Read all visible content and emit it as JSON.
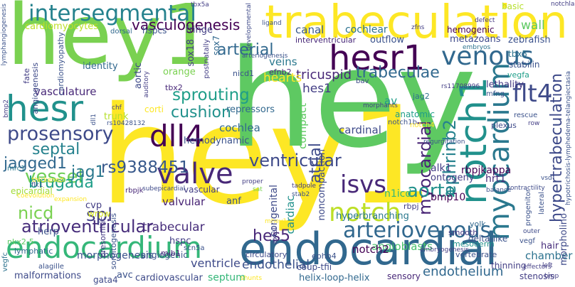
{
  "cloud": {
    "words": [
      {
        "text": "hey1",
        "color": "#fde725"
      },
      {
        "text": "hey",
        "color": "#5ec962"
      },
      {
        "text": "hey1",
        "color": "#7ad151"
      },
      {
        "text": "trabeculation",
        "color": "#fde725"
      },
      {
        "text": "endocardial",
        "color": "#31688e"
      },
      {
        "text": "notch1",
        "color": "#21918c"
      },
      {
        "text": "hesr1",
        "color": "#440154"
      },
      {
        "text": "hesr",
        "color": "#21918c"
      },
      {
        "text": "myocardium",
        "color": "#2a788e"
      },
      {
        "text": "endocardium",
        "color": "#35b779"
      },
      {
        "text": "valve",
        "color": "#482878"
      },
      {
        "text": "dll4",
        "color": "#440154"
      },
      {
        "text": "venous",
        "color": "#31688e"
      },
      {
        "text": "intersegmental",
        "color": "#26828e"
      },
      {
        "text": "notch",
        "color": "#bddf26"
      },
      {
        "text": "arteriovenous",
        "color": "#31688e"
      },
      {
        "text": "flt4",
        "color": "#3e4a89"
      },
      {
        "text": "prosensory",
        "color": "#3e4a89"
      },
      {
        "text": "isvs",
        "color": "#482878"
      },
      {
        "text": "ventricular",
        "color": "#3e4a89"
      },
      {
        "text": "sprouting",
        "color": "#1f9e89"
      },
      {
        "text": "trabeculae",
        "color": "#31688e"
      },
      {
        "text": "atrioventricular",
        "color": "#472d7b"
      },
      {
        "text": "vessel",
        "color": "#6ece58"
      },
      {
        "text": "hypertrabeculation",
        "color": "#3e4a89"
      },
      {
        "text": "myocardial",
        "color": "#482475"
      },
      {
        "text": "aorta",
        "color": "#21918c"
      },
      {
        "text": "cushion",
        "color": "#21918c"
      },
      {
        "text": "jagged1",
        "color": "#31688e"
      },
      {
        "text": "brugada",
        "color": "#1f9e89"
      },
      {
        "text": "rs9388451",
        "color": "#38598c"
      },
      {
        "text": "arterial",
        "color": "#31688e"
      },
      {
        "text": "vasculogenesis",
        "color": "#440154"
      },
      {
        "text": "ephrinb2",
        "color": "#26828e"
      },
      {
        "text": "jag1",
        "color": "#2a788e"
      },
      {
        "text": "nicd",
        "color": "#7ad151"
      },
      {
        "text": "hes5",
        "color": "#482878"
      },
      {
        "text": "spl",
        "color": "#433e85"
      },
      {
        "text": "cardiomyocytes",
        "color": "#bddf26"
      },
      {
        "text": "septal",
        "color": "#26828e"
      },
      {
        "text": "angioblasts",
        "color": "#4ac16d"
      },
      {
        "text": "atrial",
        "color": "#3e4a89"
      },
      {
        "text": "tricuspid",
        "color": "#482878"
      },
      {
        "text": "vasculature",
        "color": "#482878"
      },
      {
        "text": "canal",
        "color": "#38598c"
      },
      {
        "text": "cochlear",
        "color": "#2c728e"
      },
      {
        "text": "hemogenic",
        "color": "#440154"
      },
      {
        "text": "basic",
        "color": "#b5de2b"
      },
      {
        "text": "wall",
        "color": "#5ec962"
      },
      {
        "text": "endothelium",
        "color": "#31688e"
      },
      {
        "text": "endothelial",
        "color": "#3b528b"
      },
      {
        "text": "ventricle",
        "color": "#3e4a89"
      },
      {
        "text": "chamber",
        "color": "#2c728e"
      },
      {
        "text": "hyperbranching",
        "color": "#2a788e"
      },
      {
        "text": "helix-loop-helix",
        "color": "#31688e"
      },
      {
        "text": "sensory",
        "color": "#482878"
      },
      {
        "text": "stenosis",
        "color": "#433e85"
      },
      {
        "text": "notch2",
        "color": "#440154"
      },
      {
        "text": "cardinal",
        "color": "#3e4a89"
      },
      {
        "text": "cochlea",
        "color": "#31688e"
      },
      {
        "text": "alk1",
        "color": "#433e85"
      },
      {
        "text": "hrt1",
        "color": "#472d7b"
      },
      {
        "text": "bmp10",
        "color": "#440154"
      },
      {
        "text": "ontogeny",
        "color": "#433e85"
      },
      {
        "text": "lethality",
        "color": "#443983"
      },
      {
        "text": "av",
        "color": "#1f9e89"
      },
      {
        "text": "hair",
        "color": "#472d7b"
      },
      {
        "text": "valvular",
        "color": "#482475"
      },
      {
        "text": "epicardial",
        "color": "#a0da39"
      },
      {
        "text": "herp",
        "color": "#3b528b"
      },
      {
        "text": "cvp",
        "color": "#433e85"
      },
      {
        "text": "wrpw",
        "color": "#d0e11c"
      },
      {
        "text": "lymphatic",
        "color": "#31688e"
      },
      {
        "text": "morphogenesis",
        "color": "#3b528b"
      },
      {
        "text": "malformations",
        "color": "#3e4a89"
      },
      {
        "text": "cardiovascular",
        "color": "#3e4a89"
      },
      {
        "text": "angiogenic",
        "color": "#3b528b"
      },
      {
        "text": "septum",
        "color": "#35b779"
      },
      {
        "text": "avc",
        "color": "#3b528b"
      },
      {
        "text": "gata4",
        "color": "#3e4a89"
      },
      {
        "text": "trabecular",
        "color": "#472d7b"
      },
      {
        "text": "hspc",
        "color": "#433e85"
      },
      {
        "text": "anf",
        "color": "#3b528b"
      },
      {
        "text": "vascular",
        "color": "#433e85"
      },
      {
        "text": "hemodynamic",
        "color": "#3b528b"
      },
      {
        "text": "repressors",
        "color": "#31688e"
      },
      {
        "text": "corti",
        "color": "#fde725"
      },
      {
        "text": "trunk",
        "color": "#b5de2b"
      },
      {
        "text": "orange",
        "color": "#7ad151"
      },
      {
        "text": "fringe",
        "color": "#433e85"
      },
      {
        "text": "hspcs",
        "color": "#3b528b"
      },
      {
        "text": "dorsal",
        "color": "#31688e"
      },
      {
        "text": "identity",
        "color": "#31688e"
      },
      {
        "text": "sox18",
        "color": "#433e85"
      },
      {
        "text": "sox7",
        "color": "#31688e"
      },
      {
        "text": "hearts",
        "color": "#fde725"
      },
      {
        "text": "hes1",
        "color": "#433e85"
      },
      {
        "text": "veins",
        "color": "#2a788e"
      },
      {
        "text": "efnb2",
        "color": "#482878"
      },
      {
        "text": "outflow",
        "color": "#3b528b"
      },
      {
        "text": "interventricular",
        "color": "#482878"
      },
      {
        "text": "metazoans",
        "color": "#3e4a89"
      },
      {
        "text": "zebrafish",
        "color": "#3b528b"
      },
      {
        "text": "tbx5",
        "color": "#2c728e"
      },
      {
        "text": "stabilin",
        "color": "#3b528b"
      },
      {
        "text": "vegfa",
        "color": "#1f9e89"
      },
      {
        "text": "tbx2",
        "color": "#482878"
      },
      {
        "text": "nicd1",
        "color": "#3b528b"
      },
      {
        "text": "mib1",
        "color": "#482878"
      },
      {
        "text": "anatomic",
        "color": "#433e85"
      },
      {
        "text": "ecs",
        "color": "#1f9e89"
      },
      {
        "text": "notch1b",
        "color": "#3b528b"
      },
      {
        "text": "rbpjkappa",
        "color": "#440154"
      },
      {
        "text": "rbpj",
        "color": "#433e85"
      },
      {
        "text": "jag2",
        "color": "#2c728e"
      },
      {
        "text": "notch4",
        "color": "#fde725"
      },
      {
        "text": "cardiac",
        "color": "#21918c"
      },
      {
        "text": "congenital",
        "color": "#3e4a89"
      },
      {
        "text": "compact",
        "color": "#5ec962"
      },
      {
        "text": "noncompaction",
        "color": "#3e4a89"
      },
      {
        "text": "n1icd",
        "color": "#35b779"
      },
      {
        "text": "ephb4",
        "color": "#3b528b"
      },
      {
        "text": "coup-tfii",
        "color": "#3e4a89"
      },
      {
        "text": "yolk",
        "color": "#31688e"
      },
      {
        "text": "delta-like",
        "color": "#3b528b"
      },
      {
        "text": "smooth",
        "color": "#443983"
      },
      {
        "text": "mesoderm",
        "color": "#21918c"
      },
      {
        "text": "vertebrate",
        "color": "#3b528b"
      },
      {
        "text": "thinning",
        "color": "#433e85"
      },
      {
        "text": "vegf",
        "color": "#3b528b"
      },
      {
        "text": "circulatory",
        "color": "#3e4a89"
      },
      {
        "text": "presomitic",
        "color": "#443983"
      },
      {
        "text": "somitogenesis",
        "color": "#3b528b"
      },
      {
        "text": "nkx2-5",
        "color": "#5ec962"
      },
      {
        "text": "scn5a",
        "color": "#3b528b"
      },
      {
        "text": "rbpjk",
        "color": "#482878"
      },
      {
        "text": "mrc1",
        "color": "#2a788e"
      },
      {
        "text": "vegfc",
        "color": "#2c728e"
      },
      {
        "text": "alagille",
        "color": "#3b528b"
      },
      {
        "text": "fate",
        "color": "#433e85"
      },
      {
        "text": "angiogenesis",
        "color": "#3e4a89"
      },
      {
        "text": "cardiomyopathy",
        "color": "#3b528b"
      },
      {
        "text": "aortic",
        "color": "#3e4a89"
      },
      {
        "text": "pdh",
        "color": "#433e85"
      },
      {
        "text": "postnatally",
        "color": "#433e85"
      },
      {
        "text": "ligand",
        "color": "#3b528b"
      },
      {
        "text": "zfns",
        "color": "#433e85"
      },
      {
        "text": "tbx5a",
        "color": "#433e85"
      },
      {
        "text": "defect",
        "color": "#443983"
      },
      {
        "text": "embryos",
        "color": "#2c728e"
      },
      {
        "text": "morpholino",
        "color": "#3e4a89"
      },
      {
        "text": "effectors",
        "color": "#433e85"
      },
      {
        "text": "lateral",
        "color": "#3b528b"
      },
      {
        "text": "progenitor",
        "color": "#3b528b"
      },
      {
        "text": "plexus",
        "color": "#3e4a89"
      },
      {
        "text": "rescue",
        "color": "#3b528b"
      },
      {
        "text": "row",
        "color": "#433e85"
      },
      {
        "text": "mfng",
        "color": "#3b528b"
      },
      {
        "text": "morphants",
        "color": "#433e85"
      },
      {
        "text": "bav",
        "color": "#3e4a89"
      },
      {
        "text": "rs11708996",
        "color": "#433e85"
      },
      {
        "text": "regurgitation",
        "color": "#3b528b"
      },
      {
        "text": "contractility",
        "color": "#3e4a89"
      },
      {
        "text": "balance",
        "color": "#3b528b"
      },
      {
        "text": "left",
        "color": "#433e85"
      },
      {
        "text": "outer",
        "color": "#3e4a89"
      },
      {
        "text": "bmp",
        "color": "#433e85"
      },
      {
        "text": "hypotrichosis-lymphedema-telangiectasia",
        "color": "#3b528b"
      },
      {
        "text": "axial",
        "color": "#433e85"
      },
      {
        "text": "mhey1",
        "color": "#fde725"
      },
      {
        "text": "tadpole",
        "color": "#433e85"
      },
      {
        "text": "stab2",
        "color": "#3b528b"
      },
      {
        "text": "sat",
        "color": "#7ad151"
      },
      {
        "text": "proper",
        "color": "#433e85"
      },
      {
        "text": "subepicardial",
        "color": "#3e4a89"
      },
      {
        "text": "ear",
        "color": "#433e85"
      },
      {
        "text": "flk1",
        "color": "#3b528b"
      },
      {
        "text": "thickened",
        "color": "#fde725"
      },
      {
        "text": "coevolution",
        "color": "#fde725"
      },
      {
        "text": "rs10428132",
        "color": "#3b528b"
      },
      {
        "text": "chf",
        "color": "#433e85"
      },
      {
        "text": "dll1",
        "color": "#3b528b"
      },
      {
        "text": "bmp2",
        "color": "#433e85"
      },
      {
        "text": "lymphangiogenesis",
        "color": "#3b528b"
      },
      {
        "text": "auditory",
        "color": "#433e85"
      },
      {
        "text": "arteriogenesis",
        "color": "#3b528b"
      },
      {
        "text": "developmental",
        "color": "#3e4a89"
      },
      {
        "text": "notchla",
        "color": "#433e85"
      },
      {
        "text": "heart",
        "color": "#fde725"
      },
      {
        "text": "shunts",
        "color": "#fde725"
      },
      {
        "text": "vsd",
        "color": "#3b528b"
      },
      {
        "text": "embryogenesis",
        "color": "#433e85"
      },
      {
        "text": "expansion",
        "color": "#fde725"
      },
      {
        "text": "hey1",
        "color": "#3e4a89"
      }
    ]
  }
}
